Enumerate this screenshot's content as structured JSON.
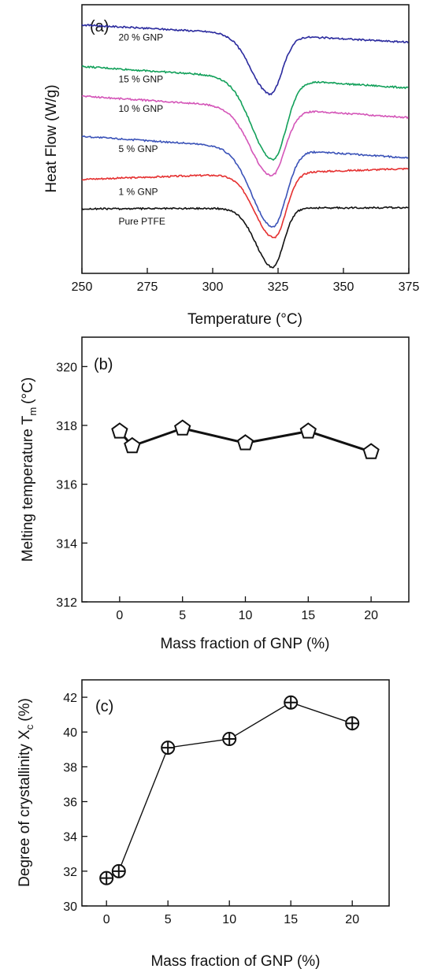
{
  "chart_data": [
    {
      "type": "line",
      "panel_label": "(a)",
      "xlabel": "Temperature (°C)",
      "ylabel": "Heat Flow (W/g)",
      "xlim": [
        250,
        375
      ],
      "xticks": [
        250,
        275,
        300,
        325,
        350,
        375
      ],
      "y_ticks_shown": false,
      "series": [
        {
          "name": "20 % GNP",
          "color": "#2a2a9e",
          "baseline_start": 0.925,
          "baseline_end": 0.86,
          "peak_x": 322,
          "peak_depth": 0.22,
          "peak_width": 4.5
        },
        {
          "name": "15 % GNP",
          "color": "#12a05a",
          "baseline_start": 0.77,
          "baseline_end": 0.69,
          "peak_x": 323,
          "peak_depth": 0.3,
          "peak_width": 5.0
        },
        {
          "name": "10 % GNP",
          "color": "#d455b8",
          "baseline_start": 0.66,
          "baseline_end": 0.58,
          "peak_x": 322.5,
          "peak_depth": 0.25,
          "peak_width": 5.0
        },
        {
          "name": "5 % GNP",
          "color": "#3a52b8",
          "baseline_start": 0.51,
          "baseline_end": 0.43,
          "peak_x": 323,
          "peak_depth": 0.29,
          "peak_width": 5.0
        },
        {
          "name": "1 % GNP",
          "color": "#e53030",
          "baseline_start": 0.35,
          "baseline_end": 0.39,
          "peak_x": 323.5,
          "peak_depth": 0.24,
          "peak_width": 4.5
        },
        {
          "name": "Pure PTFE",
          "color": "#111111",
          "baseline_start": 0.24,
          "baseline_end": 0.245,
          "peak_x": 323,
          "peak_depth": 0.22,
          "peak_width": 4.0
        }
      ]
    },
    {
      "type": "line",
      "panel_label": "(b)",
      "xlabel": "Mass fraction of GNP (%)",
      "ylabel": "Melting temperature T",
      "ylabel_subscript": "m",
      "ylabel_unit": "(°C)",
      "xlim": [
        -3,
        23
      ],
      "ylim": [
        312,
        321
      ],
      "xticks": [
        0,
        5,
        10,
        15,
        20
      ],
      "yticks": [
        312,
        314,
        316,
        318,
        320
      ],
      "marker": "pentagon",
      "x": [
        0,
        1,
        5,
        10,
        15,
        20
      ],
      "y": [
        317.8,
        317.3,
        317.9,
        317.4,
        317.8,
        317.1
      ]
    },
    {
      "type": "line",
      "panel_label": "(c)",
      "xlabel": "Mass fraction of GNP (%)",
      "ylabel": "Degree of crystallinity X",
      "ylabel_subscript": "c",
      "ylabel_unit": "(%)",
      "xlim": [
        -2,
        23
      ],
      "ylim": [
        30,
        43
      ],
      "xticks": [
        0,
        5,
        10,
        15,
        20
      ],
      "yticks": [
        30,
        32,
        34,
        36,
        38,
        40,
        42
      ],
      "marker": "circle-plus",
      "x": [
        0,
        1,
        5,
        10,
        15,
        20
      ],
      "y": [
        31.6,
        32.0,
        39.1,
        39.6,
        41.7,
        40.5
      ]
    }
  ]
}
